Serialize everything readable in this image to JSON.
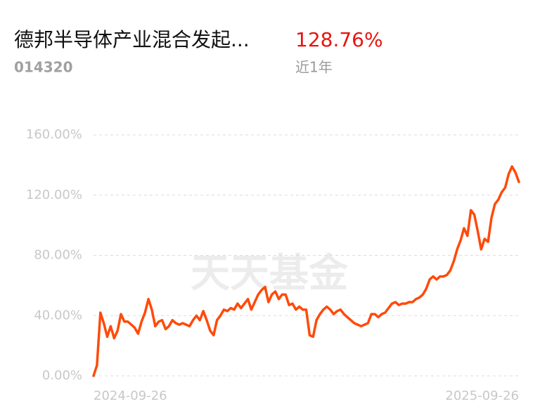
{
  "fund": {
    "name": "德邦半导体产业混合发起...",
    "code": "014320",
    "return": "128.76%",
    "period": "近1年",
    "watermark": "天天基金"
  },
  "chart_data": {
    "type": "line",
    "color": "#ff4a0a",
    "grid": true,
    "categories": [
      "2024-09-26",
      null,
      null,
      null,
      null,
      null,
      null,
      null,
      null,
      null,
      null,
      null,
      null,
      null,
      null,
      null,
      null,
      null,
      null,
      null,
      null,
      null,
      null,
      null,
      null,
      null,
      null,
      null,
      null,
      null,
      null,
      null,
      null,
      null,
      null,
      null,
      null,
      null,
      null,
      null,
      null,
      null,
      null,
      null,
      null,
      null,
      null,
      null,
      null,
      null,
      null,
      null,
      null,
      null,
      null,
      null,
      null,
      null,
      null,
      null,
      null,
      null,
      null,
      null,
      null,
      null,
      null,
      null,
      null,
      null,
      null,
      null,
      null,
      null,
      null,
      null,
      null,
      null,
      null,
      null,
      null,
      null,
      null,
      null,
      null,
      null,
      null,
      null,
      null,
      null,
      null,
      null,
      null,
      null,
      null,
      null,
      null,
      null,
      null,
      null,
      null,
      null,
      null,
      null,
      null,
      null,
      null,
      null,
      null,
      null,
      null,
      null,
      null,
      null,
      null,
      null,
      null,
      null,
      null,
      null,
      null,
      null,
      null,
      null,
      "2025-09-26"
    ],
    "values": [
      0,
      7,
      42,
      35,
      26,
      33,
      25,
      30,
      41,
      36,
      36,
      34,
      32,
      28,
      36,
      42,
      51,
      44,
      33,
      36,
      37,
      31,
      33,
      37,
      35,
      34,
      35,
      34,
      33,
      37,
      40,
      37,
      43,
      37,
      30,
      27,
      37,
      40,
      44,
      43,
      45,
      44,
      48,
      45,
      48,
      51,
      44,
      49,
      54,
      57,
      59,
      49,
      54,
      56,
      51,
      54,
      54,
      47,
      48,
      44,
      46,
      44,
      44,
      27,
      26,
      37,
      41,
      44,
      46,
      44,
      41,
      43,
      44,
      41,
      39,
      37,
      35,
      34,
      33,
      34,
      35,
      41,
      41,
      39,
      41,
      42,
      45,
      48,
      49,
      47,
      48,
      48,
      49,
      49,
      51,
      52,
      54,
      58,
      64,
      66,
      64,
      66,
      66,
      67,
      70,
      76,
      84,
      90,
      98,
      93,
      110,
      107,
      96,
      84,
      91,
      89,
      105,
      114,
      117,
      122,
      125,
      134,
      139,
      135,
      128.76
    ],
    "ylim": [
      0,
      160
    ],
    "yticks": [
      {
        "value": 0,
        "label": "0.00%"
      },
      {
        "value": 40,
        "label": "40.00%"
      },
      {
        "value": 80,
        "label": "80.00%"
      },
      {
        "value": 120,
        "label": "120.00%"
      },
      {
        "value": 160,
        "label": "160.00%"
      }
    ]
  }
}
